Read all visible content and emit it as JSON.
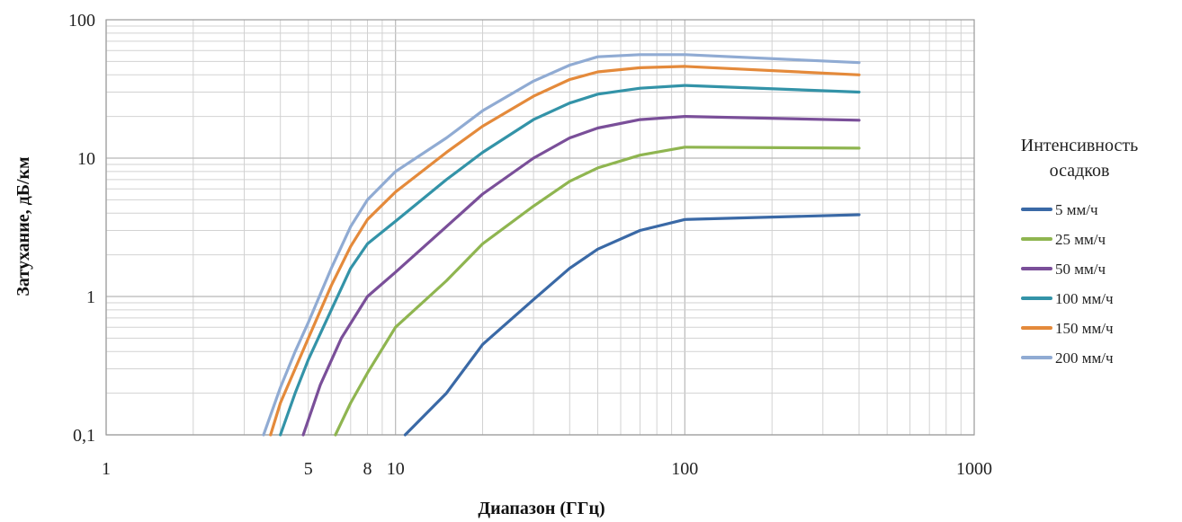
{
  "chart_data": {
    "type": "line",
    "xlabel": "Диапазон (ГГц)",
    "ylabel": "Затухание, дБ/км",
    "x_scale": "log",
    "y_scale": "log",
    "xlim": [
      1,
      1000
    ],
    "ylim": [
      0.1,
      100
    ],
    "x_tick_labels": [
      {
        "value": 1,
        "label": "1"
      },
      {
        "value": 5,
        "label": "5"
      },
      {
        "value": 8,
        "label": "8"
      },
      {
        "value": 10,
        "label": "10"
      },
      {
        "value": 100,
        "label": "100"
      },
      {
        "value": 1000,
        "label": "1000"
      }
    ],
    "y_tick_labels": [
      {
        "value": 0.1,
        "label": "0,1"
      },
      {
        "value": 1,
        "label": "1"
      },
      {
        "value": 10,
        "label": "10"
      },
      {
        "value": 100,
        "label": "100"
      }
    ],
    "grid": true,
    "legend": {
      "title_lines": [
        "Интенсивность",
        "осадков"
      ],
      "position": "right"
    },
    "series": [
      {
        "name": "5  мм/ч",
        "color": "#3a69a6",
        "points": [
          [
            10.8,
            0.1
          ],
          [
            15,
            0.2
          ],
          [
            20,
            0.45
          ],
          [
            30,
            0.95
          ],
          [
            40,
            1.6
          ],
          [
            50,
            2.2
          ],
          [
            70,
            3.0
          ],
          [
            100,
            3.6
          ],
          [
            400,
            3.9
          ]
        ]
      },
      {
        "name": "25 мм/ч",
        "color": "#8fb550",
        "points": [
          [
            6.2,
            0.1
          ],
          [
            7,
            0.17
          ],
          [
            8,
            0.28
          ],
          [
            10,
            0.6
          ],
          [
            15,
            1.3
          ],
          [
            20,
            2.4
          ],
          [
            30,
            4.5
          ],
          [
            40,
            6.8
          ],
          [
            50,
            8.5
          ],
          [
            70,
            10.5
          ],
          [
            100,
            12
          ],
          [
            400,
            11.8
          ]
        ]
      },
      {
        "name": "50 мм/ч",
        "color": "#7a4f99",
        "points": [
          [
            4.8,
            0.1
          ],
          [
            5.5,
            0.23
          ],
          [
            6.5,
            0.5
          ],
          [
            8,
            1.0
          ],
          [
            10,
            1.5
          ],
          [
            15,
            3.2
          ],
          [
            20,
            5.5
          ],
          [
            30,
            10
          ],
          [
            40,
            14
          ],
          [
            50,
            16.5
          ],
          [
            70,
            19
          ],
          [
            100,
            20
          ],
          [
            400,
            18.8
          ]
        ]
      },
      {
        "name": "100 мм/ч",
        "color": "#3393a8",
        "points": [
          [
            4.0,
            0.1
          ],
          [
            4.5,
            0.2
          ],
          [
            5,
            0.35
          ],
          [
            6,
            0.8
          ],
          [
            7,
            1.6
          ],
          [
            8,
            2.4
          ],
          [
            10,
            3.5
          ],
          [
            15,
            7
          ],
          [
            20,
            11
          ],
          [
            30,
            19
          ],
          [
            40,
            25
          ],
          [
            50,
            29
          ],
          [
            70,
            32
          ],
          [
            100,
            33.5
          ],
          [
            400,
            30
          ]
        ]
      },
      {
        "name": "150 мм/ч",
        "color": "#e48a3b",
        "points": [
          [
            3.7,
            0.1
          ],
          [
            4,
            0.17
          ],
          [
            4.5,
            0.3
          ],
          [
            5,
            0.5
          ],
          [
            6,
            1.2
          ],
          [
            7,
            2.3
          ],
          [
            8,
            3.6
          ],
          [
            10,
            5.7
          ],
          [
            15,
            11
          ],
          [
            20,
            17
          ],
          [
            30,
            28
          ],
          [
            40,
            37
          ],
          [
            50,
            42
          ],
          [
            70,
            45
          ],
          [
            100,
            46
          ],
          [
            400,
            40
          ]
        ]
      },
      {
        "name": "200 мм/ч",
        "color": "#90abd3",
        "points": [
          [
            3.5,
            0.1
          ],
          [
            4,
            0.22
          ],
          [
            4.5,
            0.4
          ],
          [
            5,
            0.65
          ],
          [
            6,
            1.6
          ],
          [
            7,
            3.2
          ],
          [
            8,
            5
          ],
          [
            10,
            8
          ],
          [
            15,
            14
          ],
          [
            20,
            22
          ],
          [
            30,
            36
          ],
          [
            40,
            47
          ],
          [
            50,
            54
          ],
          [
            70,
            56
          ],
          [
            100,
            56
          ],
          [
            400,
            49
          ]
        ]
      }
    ]
  }
}
